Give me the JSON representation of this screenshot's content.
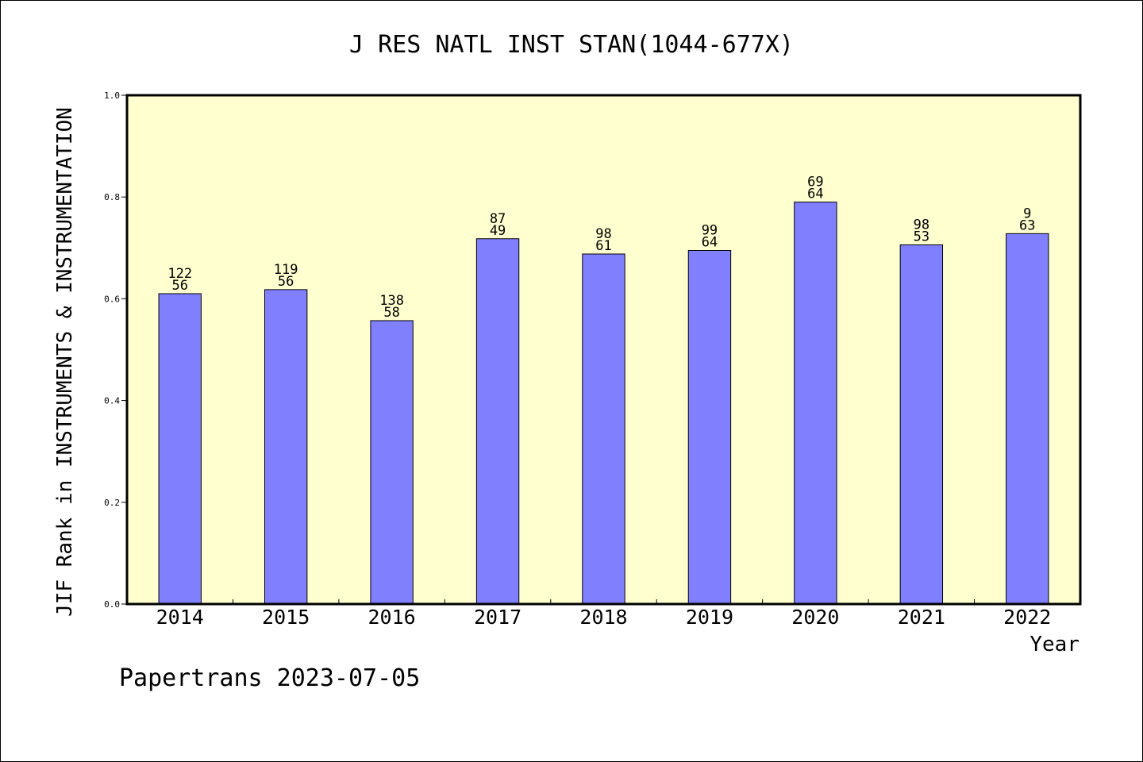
{
  "chart_data": {
    "type": "bar",
    "title": "J RES NATL INST STAN(1044-677X)",
    "xlabel": "Year",
    "ylabel": "JIF Rank in INSTRUMENTS & INSTRUMENTATION",
    "ylim": [
      0,
      1.0
    ],
    "yticks": [
      "0.0",
      "0.2",
      "0.4",
      "0.6",
      "0.8",
      "1.0"
    ],
    "grid": false,
    "categories": [
      "2014",
      "2015",
      "2016",
      "2017",
      "2018",
      "2019",
      "2020",
      "2021",
      "2022"
    ],
    "values": [
      0.61,
      0.618,
      0.557,
      0.718,
      0.688,
      0.695,
      0.79,
      0.706,
      0.728
    ],
    "label_top": [
      "122",
      "119",
      "138",
      "87",
      "98",
      "99",
      "69",
      "98",
      "9"
    ],
    "label_bottom": [
      "56",
      "56",
      "58",
      "49",
      "61",
      "64",
      "64",
      "53",
      "63"
    ],
    "colors": {
      "plot_background": "#ffffd0",
      "bar_fill": "#8080ff",
      "bar_stroke": "#000000"
    }
  },
  "footer": "Papertrans 2023-07-05"
}
